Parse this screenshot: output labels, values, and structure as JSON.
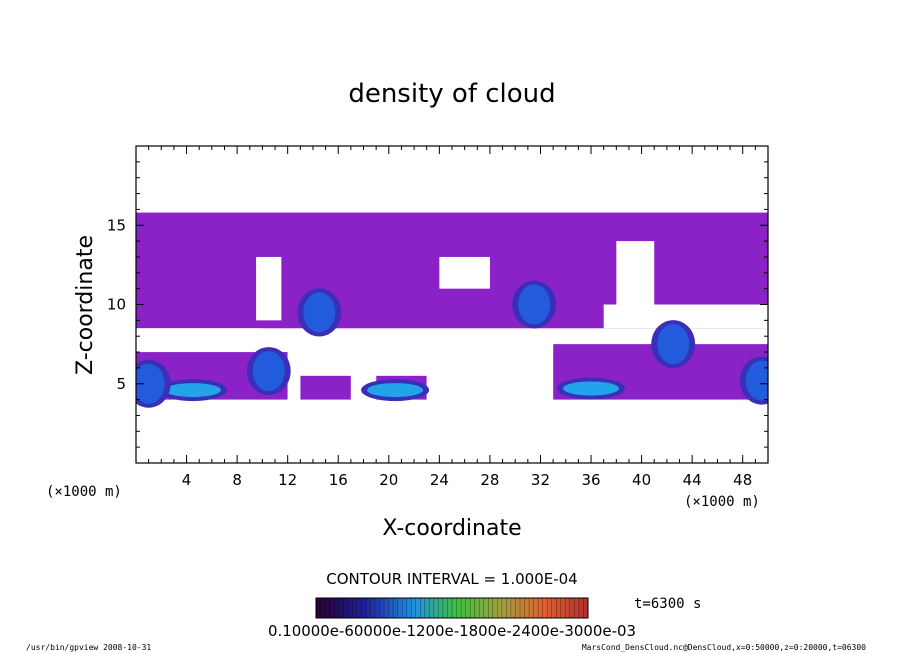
{
  "chart_data": {
    "type": "heatmap",
    "title": "density of cloud",
    "xlabel": "X-coordinate",
    "ylabel": "Z-coordinate",
    "x_unit_left": "(×1000 m)",
    "x_unit_right": "(×1000 m)",
    "xlim": [
      0,
      50
    ],
    "ylim": [
      0,
      20
    ],
    "x_ticks": [
      "4",
      "8",
      "12",
      "16",
      "20",
      "24",
      "28",
      "32",
      "36",
      "40",
      "44",
      "48"
    ],
    "y_ticks": [
      "5",
      "10",
      "15"
    ],
    "contour_interval": "CONTOUR INTERVAL = 1.000E-04",
    "time_label": "t=6300 s",
    "colorbar_labels": "0.10000e-60000e-1200e-1800e-2400e-3000e-03",
    "footer_left": "/usr/bin/gpview  2008-10-31",
    "footer_right": "MarsCond_DensCloud.nc@DensCloud,x=0:50000,z=0:20000,t=06300",
    "colors": {
      "background_cloud": "#8b22c8",
      "low_density": "#3a2fb8",
      "mid_density": "#2060e0",
      "high_density": "#20b0f0"
    },
    "cloud_regions": [
      {
        "name": "main-upper-cloud",
        "x": [
          0,
          50
        ],
        "z": [
          8.5,
          15.8
        ]
      },
      {
        "name": "lower-left-cloud",
        "x": [
          0,
          12
        ],
        "z": [
          4,
          7
        ]
      },
      {
        "name": "lower-mid-cloud-1",
        "x": [
          13,
          17
        ],
        "z": [
          4,
          5.5
        ]
      },
      {
        "name": "lower-mid-cloud-2",
        "x": [
          19,
          23
        ],
        "z": [
          4,
          5.5
        ]
      },
      {
        "name": "lower-right-cloud",
        "x": [
          33,
          50
        ],
        "z": [
          4,
          7.5
        ]
      }
    ],
    "density_cores": [
      {
        "x": 4.5,
        "z": 4.6,
        "level": "high"
      },
      {
        "x": 20.5,
        "z": 4.6,
        "level": "high"
      },
      {
        "x": 36,
        "z": 4.7,
        "level": "high"
      },
      {
        "x": 31.5,
        "z": 10,
        "level": "mid"
      },
      {
        "x": 14.5,
        "z": 9.5,
        "level": "mid"
      },
      {
        "x": 42.5,
        "z": 7.5,
        "level": "mid"
      },
      {
        "x": 10.5,
        "z": 5.8,
        "level": "mid"
      },
      {
        "x": 49.5,
        "z": 5.2,
        "level": "mid"
      },
      {
        "x": 1,
        "z": 5,
        "level": "mid"
      }
    ]
  }
}
